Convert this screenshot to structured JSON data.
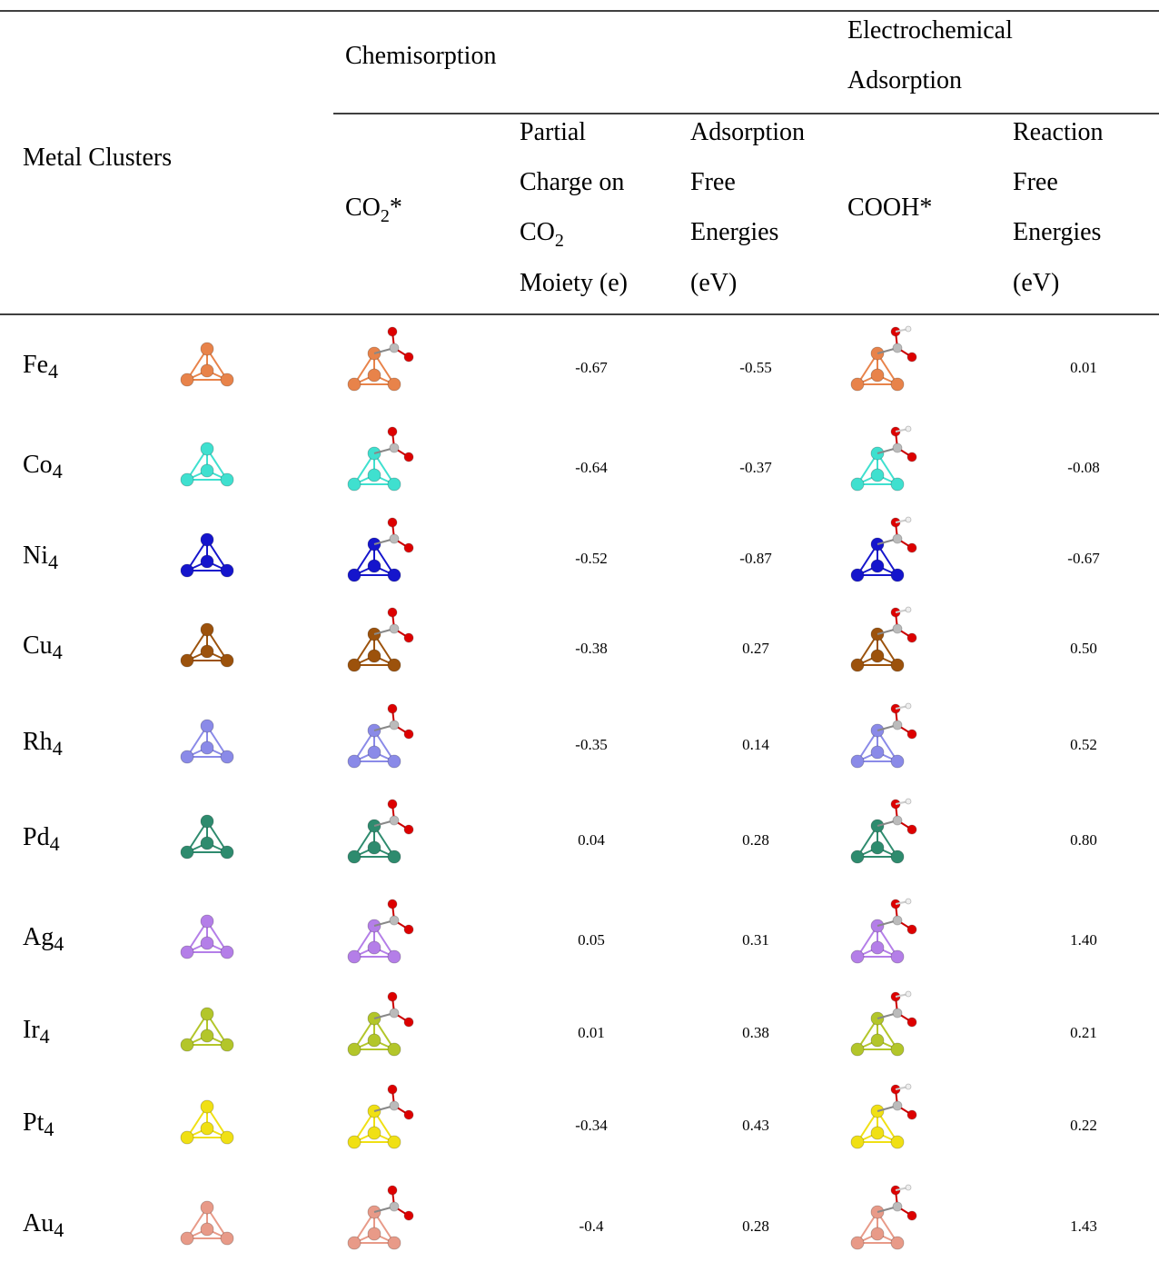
{
  "header": {
    "metal_clusters": "Metal Clusters",
    "chemisorption": "Chemisorption",
    "electrochemical": [
      "Electrochemical",
      "Adsorption"
    ],
    "co2": {
      "text": "CO",
      "sub": "2",
      "suffix": "*"
    },
    "partial_charge": {
      "line1": "Partial",
      "line2": "Charge on",
      "co2": "CO",
      "sub": "2",
      "line4": "Moiety (e)"
    },
    "adsorption": [
      "Adsorption",
      "Free",
      "Energies",
      "(eV)"
    ],
    "cooh": "COOH*",
    "reaction": [
      "Reaction",
      "Free",
      "Energies",
      "(eV)"
    ]
  },
  "rows": [
    {
      "metal": "Fe",
      "sub": "4",
      "charge": "-0.67",
      "adsorption": "-0.55",
      "reaction": "0.01"
    },
    {
      "metal": "Co",
      "sub": "4",
      "charge": "-0.64",
      "adsorption": "-0.37",
      "reaction": "-0.08"
    },
    {
      "metal": "Ni",
      "sub": "4",
      "charge": "-0.52",
      "adsorption": "-0.87",
      "reaction": "-0.67"
    },
    {
      "metal": "Cu",
      "sub": "4",
      "charge": "-0.38",
      "adsorption": "0.27",
      "reaction": "0.50"
    },
    {
      "metal": "Rh",
      "sub": "4",
      "charge": "-0.35",
      "adsorption": "0.14",
      "reaction": "0.52"
    },
    {
      "metal": "Pd",
      "sub": "4",
      "charge": "0.04",
      "adsorption": "0.28",
      "reaction": "0.80"
    },
    {
      "metal": "Ag",
      "sub": "4",
      "charge": "0.05",
      "adsorption": "0.31",
      "reaction": "1.40"
    },
    {
      "metal": "Ir",
      "sub": "4",
      "charge": "0.01",
      "adsorption": "0.38",
      "reaction": "0.21"
    },
    {
      "metal": "Pt",
      "sub": "4",
      "charge": "-0.34",
      "adsorption": "0.43",
      "reaction": "0.22"
    },
    {
      "metal": "Au",
      "sub": "4",
      "charge": "-0.4",
      "adsorption": "0.28",
      "reaction": "1.43"
    }
  ]
}
